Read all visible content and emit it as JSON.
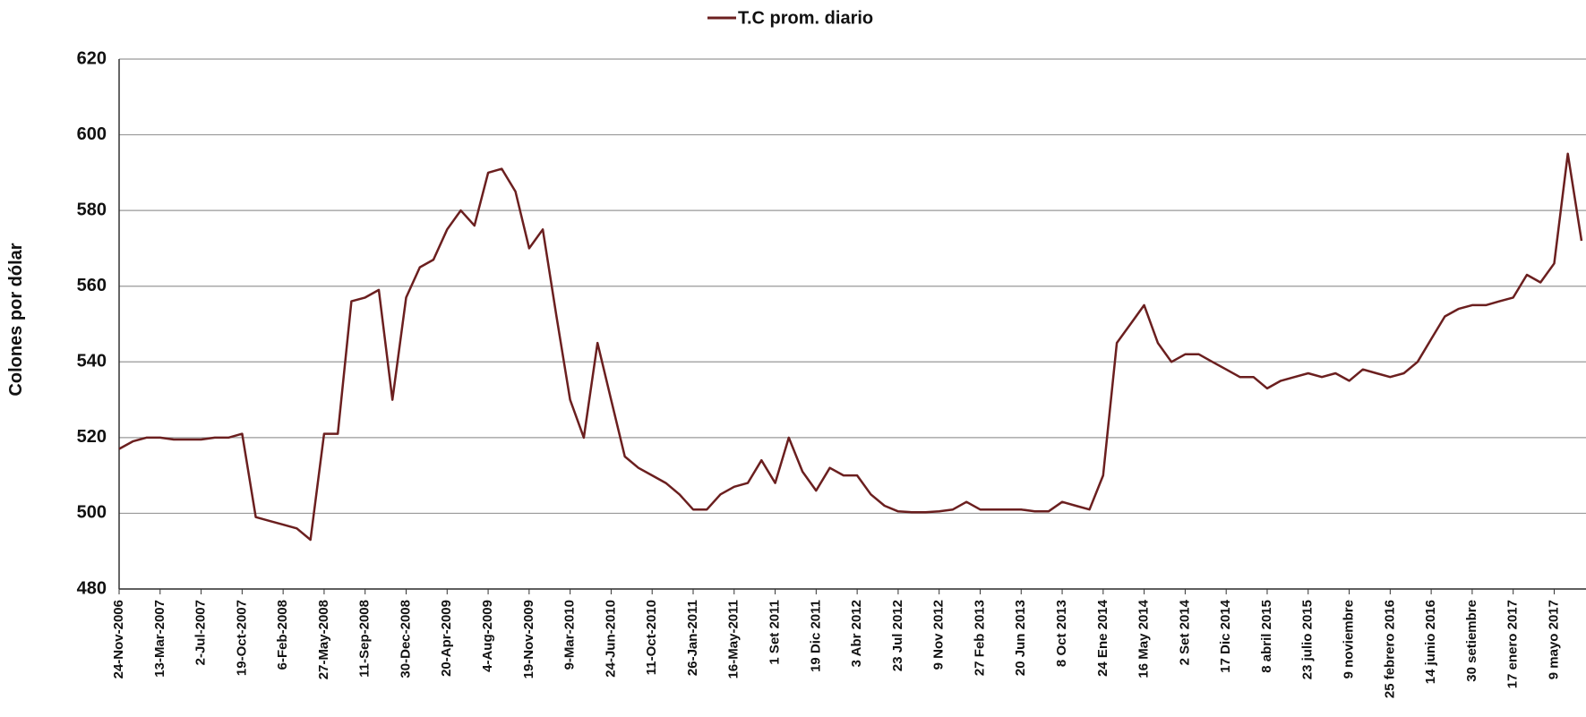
{
  "chart_data": {
    "type": "line",
    "y_label": "Colones por dólar",
    "categories": [
      "24-Nov-2006",
      null,
      null,
      "13-Mar-2007",
      null,
      null,
      "2-Jul-2007",
      null,
      null,
      "19-Oct-2007",
      null,
      null,
      "6-Feb-2008",
      null,
      null,
      "27-May-2008",
      null,
      null,
      "11-Sep-2008",
      null,
      null,
      "30-Dec-2008",
      null,
      null,
      "20-Apr-2009",
      null,
      null,
      "4-Aug-2009",
      null,
      null,
      "19-Nov-2009",
      null,
      null,
      "9-Mar-2010",
      null,
      null,
      "24-Jun-2010",
      null,
      null,
      "11-Oct-2010",
      null,
      null,
      "26-Jan-2011",
      null,
      null,
      "16-May-2011",
      null,
      null,
      "1 Set 2011",
      null,
      null,
      "19 Dic 2011",
      null,
      null,
      "3 Abr 2012",
      null,
      null,
      "23 Jul 2012",
      null,
      null,
      "9 Nov 2012",
      null,
      null,
      "27 Feb 2013",
      null,
      null,
      "20 Jun 2013",
      null,
      null,
      "8 Oct 2013",
      null,
      null,
      "24 Ene 2014",
      null,
      null,
      "16 May 2014",
      null,
      null,
      "2 Set 2014",
      null,
      null,
      "17 Dic 2014",
      null,
      null,
      "8 abril 2015",
      null,
      null,
      "23 julio 2015",
      null,
      null,
      "9 noviembre",
      null,
      null,
      "25 febrero 2016",
      null,
      null,
      "14 junio 2016",
      null,
      null,
      "30 setiembre",
      null,
      null,
      "17 enero 2017",
      null,
      null,
      "9 mayo 2017",
      null,
      null
    ],
    "series": [
      {
        "name": "T.C prom. diario",
        "color": "#6b1f1f",
        "values": [
          517,
          519,
          520,
          520,
          519.5,
          519.5,
          519.5,
          520,
          520,
          521,
          499,
          498,
          497,
          496,
          493,
          521,
          521,
          556,
          557,
          559,
          530,
          557,
          565,
          567,
          575,
          580,
          576,
          590,
          591,
          585,
          570,
          575,
          552,
          530,
          520,
          545,
          530,
          515,
          512,
          510,
          508,
          505,
          501,
          501,
          505,
          507,
          508,
          514,
          508,
          520,
          511,
          506,
          512,
          510,
          510,
          505,
          502,
          500.5,
          500.3,
          500.3,
          500.5,
          501,
          503,
          501,
          501,
          501,
          501,
          500.5,
          500.5,
          503,
          502,
          501,
          510,
          545,
          550,
          555,
          545,
          540,
          542,
          542,
          540,
          538,
          536,
          536,
          533,
          535,
          536,
          537,
          536,
          537,
          535,
          538,
          537,
          536,
          537,
          540,
          546,
          552,
          554,
          555,
          555,
          556,
          557,
          563,
          561,
          566,
          595,
          572
        ]
      }
    ],
    "ylim": [
      480,
      620
    ],
    "yticks": [
      480,
      500,
      520,
      540,
      560,
      580,
      600,
      620
    ],
    "grid": true,
    "legend": "top"
  }
}
